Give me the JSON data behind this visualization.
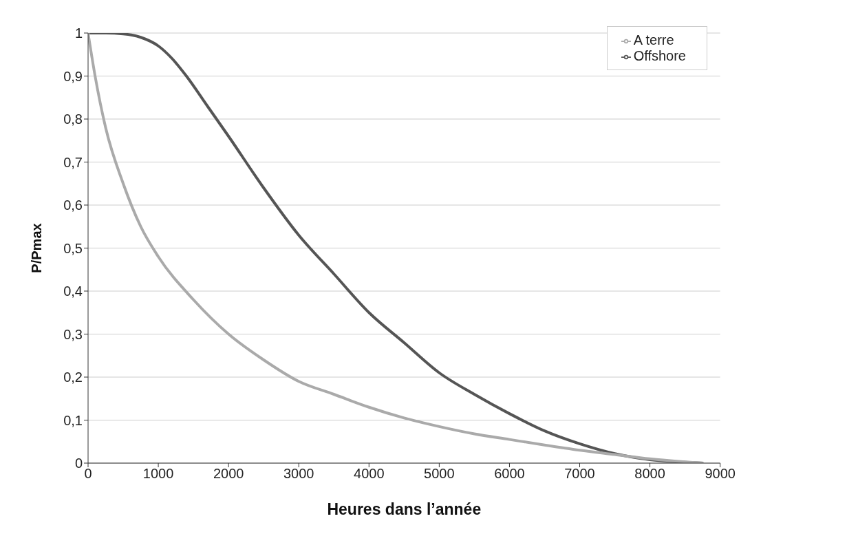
{
  "chart_data": {
    "type": "line",
    "xlabel": "Heures dans l’année",
    "ylabel": "P/Pmax",
    "xlim": [
      0,
      9000
    ],
    "xticks": [
      0,
      1000,
      2000,
      3000,
      4000,
      5000,
      6000,
      7000,
      8000,
      9000
    ],
    "ylim": [
      0,
      1
    ],
    "yticks": [
      0,
      {
        "value": 0.1,
        "label": "0,1"
      },
      {
        "value": 0.2,
        "label": "0,2"
      },
      {
        "value": 0.3,
        "label": "0,3"
      },
      {
        "value": 0.4,
        "label": "0,4"
      },
      {
        "value": 0.5,
        "label": "0,5"
      },
      {
        "value": 0.6,
        "label": "0,6"
      },
      {
        "value": 0.7,
        "label": "0,7"
      },
      {
        "value": 0.8,
        "label": "0,8"
      },
      {
        "value": 0.9,
        "label": "0,9"
      },
      1
    ],
    "grid": "y",
    "legend": "top right",
    "marker": "none",
    "line_style": "solid",
    "series": [
      {
        "name": "Offshore",
        "color": "#555555",
        "x": [
          0,
          250,
          500,
          750,
          1000,
          1200,
          1400,
          1700,
          2000,
          2500,
          3000,
          3500,
          4000,
          4500,
          5000,
          5500,
          6000,
          6500,
          7000,
          7500,
          8000,
          8500,
          8760
        ],
        "values": [
          1,
          1,
          0.998,
          0.99,
          0.97,
          0.94,
          0.9,
          0.83,
          0.76,
          0.64,
          0.53,
          0.44,
          0.35,
          0.28,
          0.21,
          0.16,
          0.115,
          0.075,
          0.045,
          0.022,
          0.008,
          0.002,
          0
        ]
      },
      {
        "name": "A terre",
        "color": "#aaaaaa",
        "x": [
          0,
          100,
          250,
          500,
          750,
          1000,
          1500,
          2000,
          2500,
          3000,
          3500,
          4000,
          4500,
          5000,
          5500,
          6000,
          6500,
          7000,
          7500,
          8000,
          8500,
          8760
        ],
        "values": [
          1,
          0.9,
          0.78,
          0.65,
          0.55,
          0.48,
          0.38,
          0.3,
          0.24,
          0.19,
          0.16,
          0.13,
          0.105,
          0.085,
          0.068,
          0.055,
          0.042,
          0.03,
          0.02,
          0.01,
          0.003,
          0
        ]
      }
    ]
  }
}
